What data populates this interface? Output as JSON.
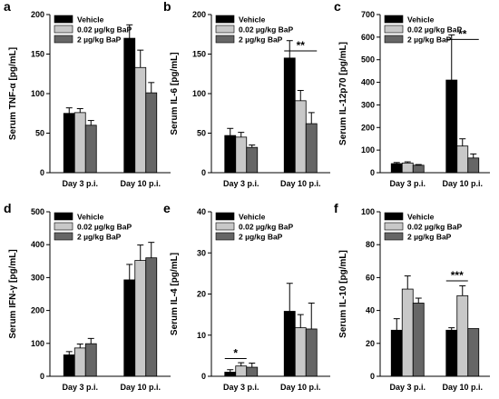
{
  "chart_data": [
    {
      "panel": "a",
      "type": "bar",
      "ylabel": "Serum TNF-α [pg/mL]",
      "ylim": [
        0,
        200
      ],
      "yticks": [
        0,
        50,
        100,
        150,
        200
      ],
      "categories": [
        "Day 3 p.i.",
        "Day 10 p.i."
      ],
      "series": [
        {
          "name": "Vehicle",
          "color": "#000000",
          "values": [
            75,
            170
          ],
          "errors": [
            7,
            17
          ]
        },
        {
          "name": "0.02 µg/kg BaP",
          "color": "#c8c8c8",
          "values": [
            76,
            133
          ],
          "errors": [
            5,
            22
          ]
        },
        {
          "name": "2 µg/kg BaP",
          "color": "#666666",
          "values": [
            60,
            101
          ],
          "errors": [
            6,
            13
          ]
        }
      ],
      "legend": "top-left",
      "annotations": []
    },
    {
      "panel": "b",
      "type": "bar",
      "ylabel": "Serum IL-6 [pg/mL]",
      "ylim": [
        0,
        200
      ],
      "yticks": [
        0,
        50,
        100,
        150,
        200
      ],
      "categories": [
        "Day 3 p.i.",
        "Day 10 p.i."
      ],
      "series": [
        {
          "name": "Vehicle",
          "color": "#000000",
          "values": [
            47,
            145
          ],
          "errors": [
            9,
            22
          ]
        },
        {
          "name": "0.02 µg/kg BaP",
          "color": "#c8c8c8",
          "values": [
            45,
            91
          ],
          "errors": [
            6,
            13
          ]
        },
        {
          "name": "2 µg/kg BaP",
          "color": "#666666",
          "values": [
            32,
            62
          ],
          "errors": [
            3,
            14
          ]
        }
      ],
      "legend": "top-left",
      "annotations": [
        {
          "text": "**",
          "from": [
            1,
            0
          ],
          "to": [
            1,
            2
          ],
          "y": 154
        }
      ]
    },
    {
      "panel": "c",
      "type": "bar",
      "ylabel": "Serum IL-12p70 [pg/mL]",
      "ylim": [
        0,
        700
      ],
      "yticks": [
        0,
        100,
        200,
        300,
        400,
        500,
        600,
        700
      ],
      "categories": [
        "Day 3 p.i.",
        "Day 10 p.i."
      ],
      "series": [
        {
          "name": "Vehicle",
          "color": "#000000",
          "values": [
            40,
            410
          ],
          "errors": [
            5,
            200
          ]
        },
        {
          "name": "0.02 µg/kg BaP",
          "color": "#c8c8c8",
          "values": [
            43,
            118
          ],
          "errors": [
            5,
            32
          ]
        },
        {
          "name": "2 µg/kg BaP",
          "color": "#666666",
          "values": [
            33,
            65
          ],
          "errors": [
            3,
            18
          ]
        }
      ],
      "legend": "top-left",
      "annotations": [
        {
          "text": "**",
          "from": [
            1,
            0
          ],
          "to": [
            1,
            2
          ],
          "y": 590
        }
      ]
    },
    {
      "panel": "d",
      "type": "bar",
      "ylabel": "Serum IFN-γ [pg/mL]",
      "ylim": [
        0,
        500
      ],
      "yticks": [
        0,
        100,
        200,
        300,
        400,
        500
      ],
      "categories": [
        "Day 3 p.i.",
        "Day 10 p.i."
      ],
      "series": [
        {
          "name": "Vehicle",
          "color": "#000000",
          "values": [
            65,
            293
          ],
          "errors": [
            10,
            47
          ]
        },
        {
          "name": "0.02 µg/kg BaP",
          "color": "#c8c8c8",
          "values": [
            86,
            352
          ],
          "errors": [
            12,
            47
          ]
        },
        {
          "name": "2 µg/kg BaP",
          "color": "#666666",
          "values": [
            99,
            360
          ],
          "errors": [
            16,
            47
          ]
        }
      ],
      "legend": "top-left",
      "annotations": []
    },
    {
      "panel": "e",
      "type": "bar",
      "ylabel": "Serum IL-4 [pg/mL]",
      "ylim": [
        0,
        40
      ],
      "yticks": [
        0,
        10,
        20,
        30,
        40
      ],
      "categories": [
        "Day 3 p.i.",
        "Day 10 p.i."
      ],
      "series": [
        {
          "name": "Vehicle",
          "color": "#000000",
          "values": [
            1,
            15.8
          ],
          "errors": [
            0.6,
            6.8
          ]
        },
        {
          "name": "0.02 µg/kg BaP",
          "color": "#c8c8c8",
          "values": [
            2.5,
            11.8
          ],
          "errors": [
            0.8,
            3.2
          ]
        },
        {
          "name": "2 µg/kg BaP",
          "color": "#666666",
          "values": [
            2.2,
            11.5
          ],
          "errors": [
            1,
            6.3
          ]
        }
      ],
      "legend": "top-left",
      "annotations": [
        {
          "text": "*",
          "from": [
            0,
            0
          ],
          "to": [
            0,
            1
          ],
          "y": 4.3
        }
      ]
    },
    {
      "panel": "f",
      "type": "bar",
      "ylabel": "Serum IL-10 [pg/mL]",
      "ylim": [
        0,
        100
      ],
      "yticks": [
        0,
        20,
        40,
        60,
        80,
        100
      ],
      "categories": [
        "Day 3 p.i.",
        "Day 10 p.i."
      ],
      "series": [
        {
          "name": "Vehicle",
          "color": "#000000",
          "values": [
            28,
            28
          ],
          "errors": [
            7,
            1.5
          ]
        },
        {
          "name": "0.02 µg/kg BaP",
          "color": "#c8c8c8",
          "values": [
            53,
            49
          ],
          "errors": [
            8,
            6
          ]
        },
        {
          "name": "2 µg/kg BaP",
          "color": "#666666",
          "values": [
            44.5,
            29
          ],
          "errors": [
            3,
            0
          ]
        }
      ],
      "legend": "top-left",
      "annotations": [
        {
          "text": "***",
          "from": [
            1,
            0
          ],
          "to": [
            1,
            1
          ],
          "y": 58
        }
      ]
    }
  ]
}
